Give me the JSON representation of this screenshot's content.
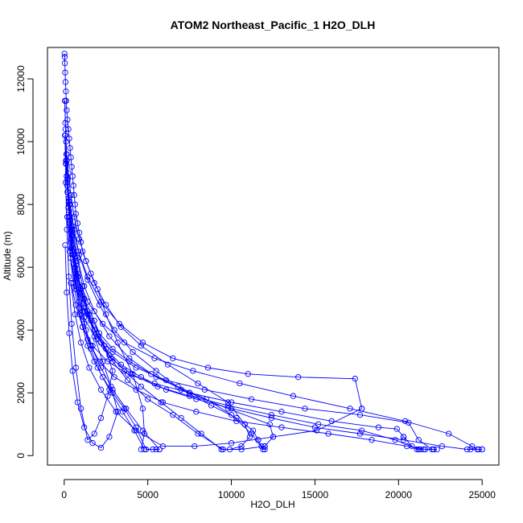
{
  "chart_data": {
    "type": "scatter",
    "mode": "lines+markers",
    "title": "ATOM2 Northeast_Pacific_1 H2O_DLH",
    "xlabel": "H2O_DLH",
    "ylabel": "Altitude (m)",
    "xlim": [
      -1000,
      26000
    ],
    "ylim": [
      -300,
      13000
    ],
    "xticks": [
      0,
      5000,
      10000,
      15000,
      20000,
      25000
    ],
    "yticks": [
      0,
      2000,
      4000,
      6000,
      8000,
      10000,
      12000
    ],
    "grid": false,
    "color": "#0000ff",
    "series": [
      {
        "x": [
          20,
          30,
          40,
          60,
          80,
          100,
          120,
          150,
          200,
          250,
          300,
          350,
          400,
          450,
          500,
          550,
          600,
          650,
          700,
          800,
          900,
          1000,
          1100,
          1300,
          1600,
          2000,
          2500,
          3200,
          4100,
          4700,
          4800,
          4600
        ],
        "y": [
          12800,
          12700,
          12500,
          12200,
          11900,
          11600,
          11300,
          11000,
          10700,
          10400,
          10100,
          9800,
          9500,
          9200,
          8900,
          8600,
          8300,
          8000,
          7700,
          7400,
          7100,
          6800,
          6500,
          6200,
          5800,
          5300,
          4500,
          3600,
          2600,
          1500,
          700,
          200
        ]
      },
      {
        "x": [
          4800,
          4200,
          3500,
          2700,
          2000,
          1600,
          1300,
          1100,
          900,
          700,
          550,
          450,
          350,
          280,
          220,
          160,
          110,
          70,
          40
        ],
        "y": [
          200,
          800,
          1400,
          2100,
          2800,
          3400,
          4000,
          4600,
          5200,
          5800,
          6400,
          7000,
          7600,
          8200,
          8800,
          9400,
          10000,
          10600,
          11300
        ]
      },
      {
        "x": [
          40,
          80,
          130,
          200,
          300,
          400,
          550,
          700,
          900,
          1200,
          1600,
          2200,
          2900,
          3700,
          4700,
          5700
        ],
        "y": [
          11300,
          10400,
          9600,
          8800,
          8000,
          7200,
          6400,
          5600,
          4900,
          4200,
          3500,
          2800,
          2100,
          1500,
          800,
          200
        ]
      },
      {
        "x": [
          5700,
          5500,
          5300,
          4900,
          4300,
          3600,
          2900,
          2300,
          1800,
          1400,
          1100,
          900,
          700,
          550,
          400,
          300,
          200,
          120,
          70
        ],
        "y": [
          200,
          200,
          200,
          200,
          900,
          1500,
          2000,
          2500,
          3000,
          3500,
          4100,
          4700,
          5400,
          6100,
          6800,
          7600,
          8400,
          9300,
          10200
        ]
      },
      {
        "x": [
          70,
          150,
          250,
          400,
          600,
          900,
          1300,
          1800,
          2500,
          3400,
          4600,
          6200,
          8000,
          9800,
          10800
        ],
        "y": [
          10200,
          9600,
          9000,
          8300,
          7600,
          6900,
          6200,
          5500,
          4800,
          4100,
          3500,
          2900,
          2300,
          1700,
          1000
        ]
      },
      {
        "x": [
          10800,
          11100,
          10600,
          9900,
          9500,
          8000,
          6500,
          5000,
          3800,
          2900,
          2200,
          1600,
          1100,
          800,
          500,
          350,
          200,
          100
        ],
        "y": [
          1000,
          600,
          300,
          200,
          200,
          700,
          1300,
          1800,
          2400,
          3000,
          3600,
          4300,
          5000,
          5800,
          6600,
          7500,
          8400,
          9300
        ]
      },
      {
        "x": [
          100,
          200,
          350,
          600,
          900,
          1400,
          2100,
          3000,
          4100,
          5500,
          7000,
          8800,
          10300,
          11300,
          11600
        ],
        "y": [
          9300,
          8700,
          8000,
          7200,
          6400,
          5600,
          4800,
          4000,
          3300,
          2700,
          2100,
          1600,
          1200,
          800,
          500
        ]
      },
      {
        "x": [
          11600,
          11800,
          12000,
          11900,
          11200,
          10000,
          8500,
          6800,
          5200,
          3900,
          2900,
          2100,
          1500,
          1000,
          650,
          400,
          250,
          150
        ],
        "y": [
          500,
          300,
          200,
          200,
          700,
          1300,
          1800,
          2200,
          2600,
          3000,
          3400,
          3900,
          4500,
          5200,
          6000,
          6900,
          7900,
          8900
        ]
      },
      {
        "x": [
          150,
          300,
          500,
          800,
          1200,
          1800,
          2700,
          3900,
          5500,
          7500,
          9800,
          12300,
          12500,
          12000
        ],
        "y": [
          8900,
          8100,
          7200,
          6300,
          5400,
          4600,
          3800,
          3100,
          2500,
          2000,
          1500,
          1000,
          600,
          300
        ]
      },
      {
        "x": [
          12000,
          10600,
          9400,
          8200,
          7000,
          5800,
          4600,
          3600,
          2700,
          2000,
          1400,
          1000,
          700,
          450,
          280
        ],
        "y": [
          300,
          200,
          200,
          700,
          1200,
          1700,
          2200,
          2700,
          3200,
          3800,
          4500,
          5300,
          6200,
          7100,
          8100
        ]
      },
      {
        "x": [
          280,
          500,
          850,
          1400,
          2200,
          3300,
          4700,
          6500,
          8600,
          11000,
          14000,
          17400,
          17800
        ],
        "y": [
          8100,
          7300,
          6500,
          5700,
          4900,
          4200,
          3600,
          3100,
          2800,
          2600,
          2500,
          2450,
          1500
        ]
      },
      {
        "x": [
          17800,
          15100,
          12500,
          10000,
          7800,
          5900,
          4300,
          3100,
          2200,
          1500,
          1000,
          650,
          400
        ],
        "y": [
          1500,
          800,
          600,
          400,
          300,
          300,
          800,
          1400,
          2100,
          2800,
          3600,
          4500,
          5500
        ]
      },
      {
        "x": [
          400,
          700,
          1100,
          1700,
          2600,
          3800,
          5400,
          7500,
          10000,
          13000,
          16000,
          18800,
          19900,
          20300
        ],
        "y": [
          5500,
          4800,
          4100,
          3500,
          3000,
          2600,
          2300,
          2000,
          1700,
          1400,
          1100,
          900,
          850,
          600
        ]
      },
      {
        "x": [
          20300,
          20800,
          21100,
          21300,
          21500,
          21200,
          19800,
          17800,
          15200,
          12400,
          9800,
          7500,
          5600,
          4000,
          2800,
          1900,
          1200,
          700,
          380
        ],
        "y": [
          600,
          300,
          200,
          200,
          200,
          200,
          500,
          800,
          1000,
          1300,
          1600,
          1900,
          2200,
          2600,
          3100,
          3700,
          4400,
          5300,
          6300
        ]
      },
      {
        "x": [
          380,
          700,
          1200,
          1900,
          2900,
          4300,
          6100,
          8400,
          11200,
          14400,
          17700,
          20600,
          21200,
          22000,
          22300,
          22100
        ],
        "y": [
          6300,
          5400,
          4600,
          3900,
          3300,
          2800,
          2400,
          2100,
          1800,
          1500,
          1300,
          1050,
          500,
          200,
          200,
          200
        ]
      },
      {
        "x": [
          22100,
          21600,
          20500,
          18400,
          15800,
          13000,
          10300,
          7900,
          5900,
          4300,
          3000,
          2100,
          1400,
          900,
          550,
          330,
          190
        ],
        "y": [
          200,
          200,
          300,
          500,
          700,
          900,
          1100,
          1400,
          1700,
          2100,
          2500,
          3000,
          3700,
          4500,
          5500,
          6500,
          7600
        ]
      },
      {
        "x": [
          190,
          400,
          800,
          1400,
          2300,
          3600,
          5400,
          7700,
          10500,
          13700,
          17100,
          20400,
          23000,
          24400,
          24700,
          25000
        ],
        "y": [
          7600,
          6600,
          5700,
          4900,
          4200,
          3600,
          3100,
          2700,
          2300,
          1900,
          1500,
          1100,
          700,
          300,
          200,
          200
        ]
      },
      {
        "x": [
          25000,
          24800,
          24300,
          24100,
          22600,
          20300,
          17700,
          15000,
          12400,
          10000,
          7900,
          6100,
          4600,
          3400,
          2500,
          1800,
          1200,
          800,
          500,
          300
        ],
        "y": [
          200,
          200,
          200,
          200,
          300,
          500,
          700,
          900,
          1200,
          1500,
          1800,
          2100,
          2500,
          2900,
          3400,
          4000,
          4700,
          5500,
          6400,
          7400
        ]
      },
      {
        "x": [
          300,
          500,
          800,
          1200,
          1800,
          2400,
          2900,
          2600,
          2200,
          1800,
          1400,
          1000,
          700,
          450,
          280,
          160,
          90,
          50
        ],
        "y": [
          7400,
          6500,
          5700,
          5000,
          4300,
          3500,
          2700,
          1900,
          1200,
          700,
          500,
          1500,
          2800,
          4200,
          5700,
          7200,
          8700,
          10200
        ]
      },
      {
        "x": [
          50,
          100,
          180,
          300,
          500,
          800,
          1100,
          1400,
          1800,
          2300,
          2800,
          3200,
          2700,
          2200,
          1700,
          1200,
          800,
          500,
          300,
          150,
          60
        ],
        "y": [
          10200,
          9400,
          8600,
          7800,
          7000,
          6200,
          5400,
          4600,
          3800,
          3000,
          2200,
          1400,
          600,
          250,
          400,
          900,
          1700,
          2700,
          3900,
          5200,
          6700
        ]
      }
    ]
  }
}
